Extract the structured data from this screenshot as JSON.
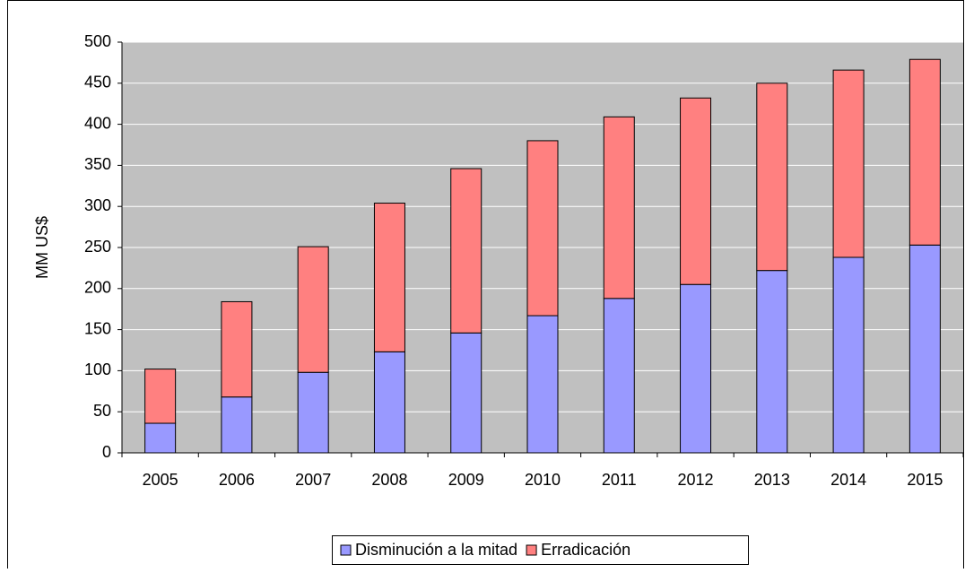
{
  "chart_data": {
    "type": "stacked_bar",
    "y_label": "MM  US$",
    "categories": [
      "2005",
      "2006",
      "2007",
      "2008",
      "2009",
      "2010",
      "2011",
      "2012",
      "2013",
      "2014",
      "2015"
    ],
    "series": [
      {
        "name": "Disminución a la mitad",
        "color": "#9999ff",
        "values": [
          36,
          68,
          98,
          123,
          146,
          167,
          188,
          205,
          222,
          238,
          253
        ]
      },
      {
        "name": "Erradicación",
        "color": "#ff8080",
        "values": [
          66,
          116,
          153,
          181,
          200,
          213,
          221,
          227,
          228,
          228,
          226
        ]
      }
    ],
    "ylim": [
      0,
      500
    ],
    "yticks": [
      0,
      50,
      100,
      150,
      200,
      250,
      300,
      350,
      400,
      450,
      500
    ],
    "grid": true,
    "legend": "bottom"
  }
}
